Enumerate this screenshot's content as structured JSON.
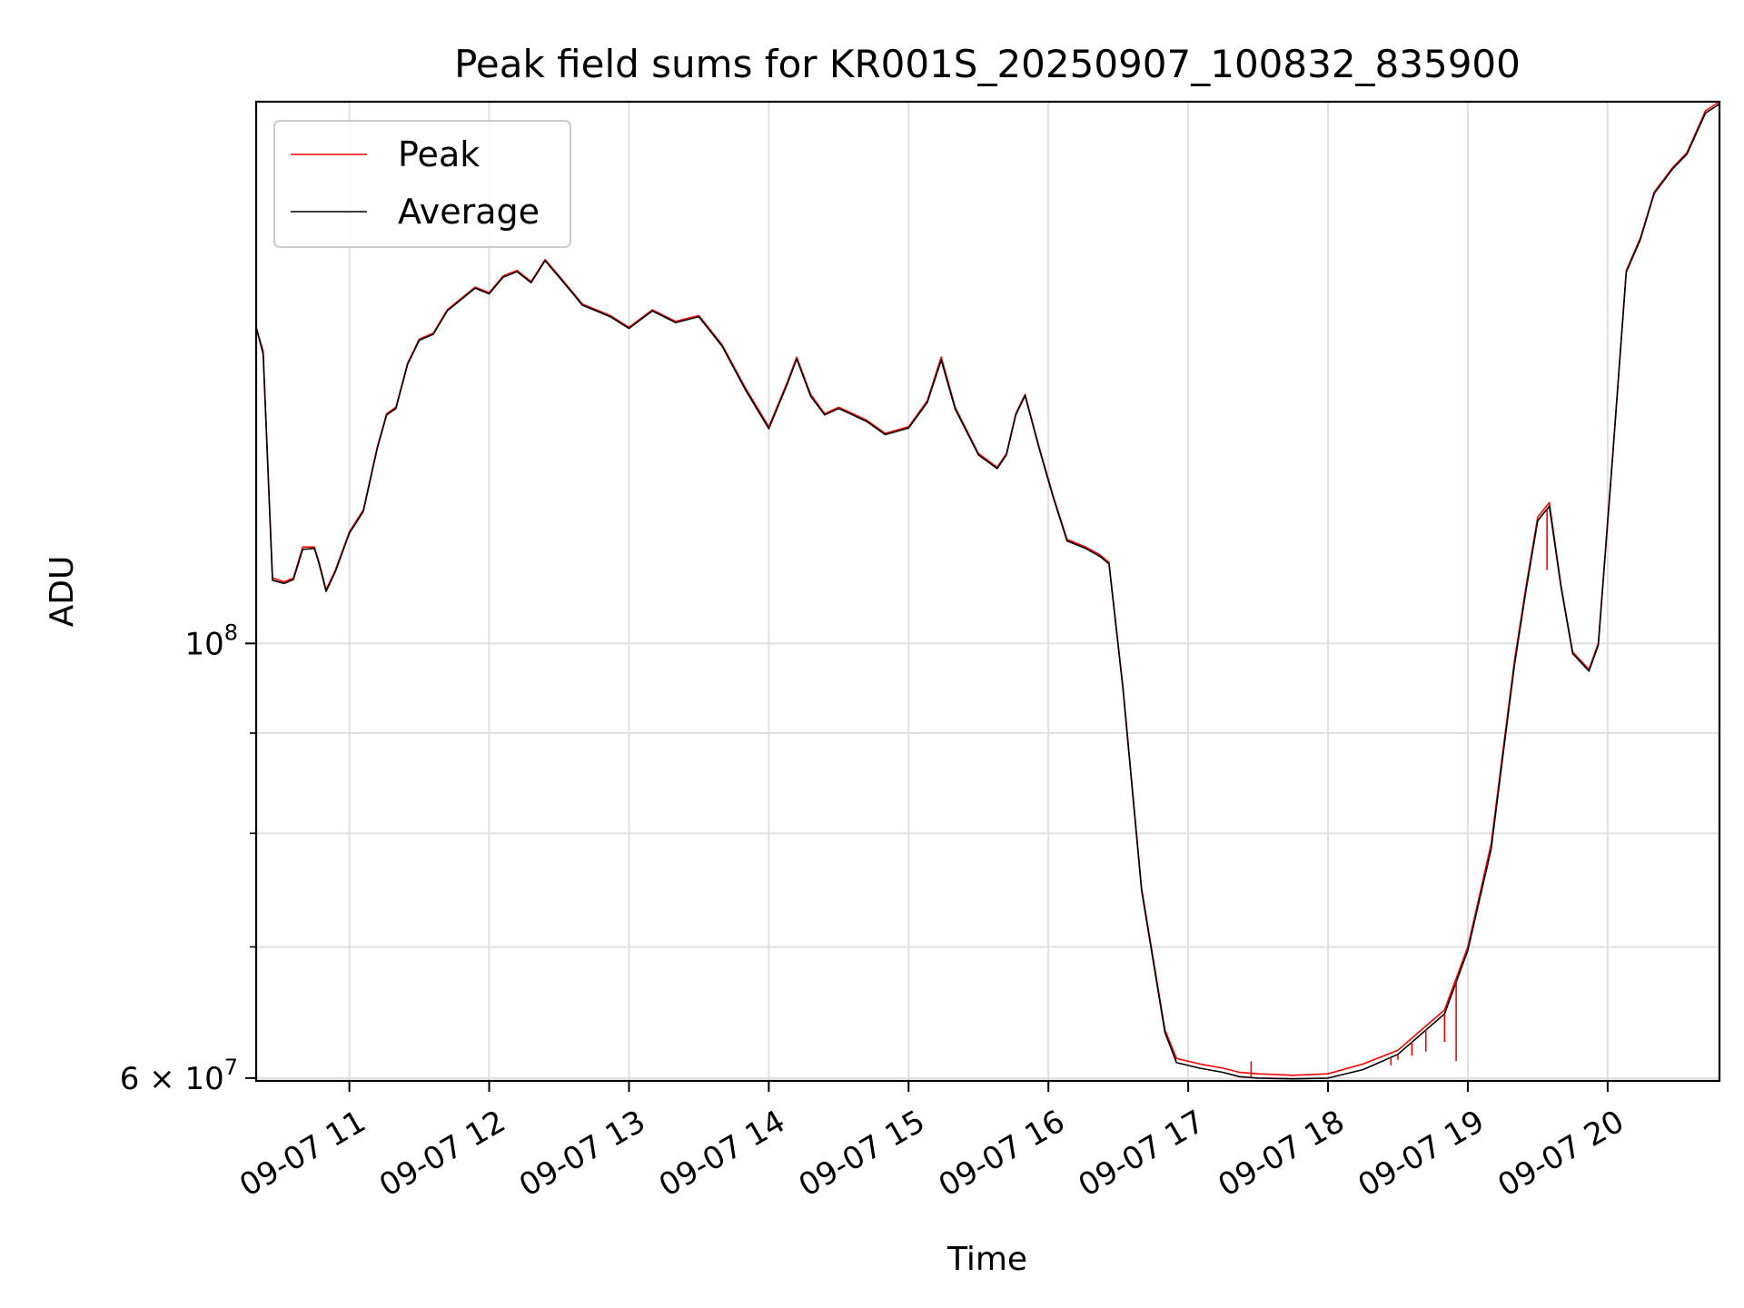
{
  "chart_data": {
    "type": "line",
    "title": "Peak field sums for KR001S_20250907_100832_835900",
    "xlabel": "Time",
    "ylabel": "ADU",
    "y_scale": "log",
    "xlim": [
      "2025-09-07T10:20",
      "2025-09-07T20:48"
    ],
    "ylim": [
      59800000,
      189000000
    ],
    "x_ticks": [
      "09-07 11",
      "09-07 12",
      "09-07 13",
      "09-07 14",
      "09-07 15",
      "09-07 16",
      "09-07 17",
      "09-07 18",
      "09-07 19",
      "09-07 20"
    ],
    "x_tick_times": [
      "2025-09-07T11:00",
      "2025-09-07T12:00",
      "2025-09-07T13:00",
      "2025-09-07T14:00",
      "2025-09-07T15:00",
      "2025-09-07T16:00",
      "2025-09-07T17:00",
      "2025-09-07T18:00",
      "2025-09-07T19:00",
      "2025-09-07T20:00"
    ],
    "y_ticks_major": [
      {
        "value": 100000000,
        "base": "10",
        "exp": "8",
        "coef": ""
      },
      {
        "value": 60000000,
        "base": "10",
        "exp": "7",
        "coef": "6"
      }
    ],
    "y_ticks_minor": [
      90000000,
      80000000,
      70000000
    ],
    "grid": true,
    "legend_position": "top-left",
    "series": [
      {
        "name": "Peak",
        "color": "#ff0000",
        "x": [
          "10:20",
          "10:23",
          "10:27",
          "10:32",
          "10:36",
          "10:40",
          "10:45",
          "10:47",
          "10:50",
          "10:54",
          "11:00",
          "11:06",
          "11:12",
          "11:16",
          "11:20",
          "11:25",
          "11:30",
          "11:36",
          "11:42",
          "11:48",
          "11:54",
          "12:00",
          "12:06",
          "12:12",
          "12:18",
          "12:24",
          "12:30",
          "12:36",
          "12:40",
          "12:46",
          "12:52",
          "13:00",
          "13:10",
          "13:20",
          "13:30",
          "13:40",
          "13:50",
          "14:00",
          "14:08",
          "14:12",
          "14:18",
          "14:24",
          "14:30",
          "14:36",
          "14:42",
          "14:50",
          "15:00",
          "15:08",
          "15:14",
          "15:20",
          "15:30",
          "15:38",
          "15:42",
          "15:46",
          "15:50",
          "15:56",
          "16:02",
          "16:08",
          "16:16",
          "16:22",
          "16:26",
          "16:32",
          "16:40",
          "16:50",
          "16:55",
          "17:05",
          "17:15",
          "17:22",
          "17:30",
          "17:45",
          "18:00",
          "18:15",
          "18:30",
          "18:50",
          "19:00",
          "19:10",
          "19:15",
          "19:20",
          "19:25",
          "19:30",
          "19:35",
          "19:40",
          "19:45",
          "19:52",
          "19:56",
          "20:02",
          "20:08",
          "20:14",
          "20:20",
          "20:28",
          "20:34",
          "20:42",
          "20:48"
        ],
        "y": [
          145000000,
          141000000,
          108000000,
          107500000,
          108000000,
          112000000,
          112000000,
          110000000,
          106500000,
          109000000,
          114000000,
          117000000,
          126000000,
          131000000,
          132000000,
          139000000,
          143000000,
          144000000,
          148000000,
          150000000,
          152000000,
          151000000,
          154000000,
          155000000,
          153000000,
          157000000,
          154000000,
          151000000,
          149000000,
          148000000,
          147000000,
          145000000,
          148000000,
          146000000,
          147000000,
          142000000,
          135000000,
          129000000,
          136000000,
          140000000,
          134000000,
          131000000,
          132000000,
          131000000,
          130000000,
          128000000,
          129000000,
          133000000,
          140000000,
          132000000,
          125000000,
          123000000,
          125000000,
          131000000,
          134000000,
          126000000,
          119000000,
          113000000,
          112000000,
          111000000,
          110000000,
          95000000,
          75000000,
          63500000,
          61400000,
          61000000,
          60700000,
          60400000,
          60300000,
          60200000,
          60300000,
          61000000,
          62000000,
          65000000,
          70000000,
          79000000,
          88000000,
          98000000,
          107000000,
          116000000,
          118000000,
          107000000,
          99000000,
          97000000,
          100000000,
          124000000,
          155000000,
          161000000,
          170000000,
          175000000,
          178000000,
          187000000,
          189000000
        ]
      },
      {
        "name": "Average",
        "color": "#000000",
        "x": [
          "10:20",
          "10:23",
          "10:27",
          "10:32",
          "10:36",
          "10:40",
          "10:45",
          "10:47",
          "10:50",
          "10:54",
          "11:00",
          "11:06",
          "11:12",
          "11:16",
          "11:20",
          "11:25",
          "11:30",
          "11:36",
          "11:42",
          "11:48",
          "11:54",
          "12:00",
          "12:06",
          "12:12",
          "12:18",
          "12:24",
          "12:30",
          "12:36",
          "12:40",
          "12:46",
          "12:52",
          "13:00",
          "13:10",
          "13:20",
          "13:30",
          "13:40",
          "13:50",
          "14:00",
          "14:08",
          "14:12",
          "14:18",
          "14:24",
          "14:30",
          "14:36",
          "14:42",
          "14:50",
          "15:00",
          "15:08",
          "15:14",
          "15:20",
          "15:30",
          "15:38",
          "15:42",
          "15:46",
          "15:50",
          "15:56",
          "16:02",
          "16:08",
          "16:16",
          "16:22",
          "16:26",
          "16:32",
          "16:40",
          "16:50",
          "16:55",
          "17:05",
          "17:15",
          "17:22",
          "17:30",
          "17:45",
          "18:00",
          "18:15",
          "18:30",
          "18:50",
          "19:00",
          "19:10",
          "19:15",
          "19:20",
          "19:25",
          "19:30",
          "19:35",
          "19:40",
          "19:45",
          "19:52",
          "19:56",
          "20:02",
          "20:08",
          "20:14",
          "20:20",
          "20:28",
          "20:34",
          "20:42",
          "20:48"
        ],
        "y": [
          145000000,
          140500000,
          107700000,
          107300000,
          107800000,
          111700000,
          111800000,
          109800000,
          106300000,
          108800000,
          113800000,
          116800000,
          125800000,
          130800000,
          131800000,
          138800000,
          142800000,
          143800000,
          147800000,
          149800000,
          151800000,
          150800000,
          153800000,
          154800000,
          152800000,
          156800000,
          153800000,
          150800000,
          148800000,
          147800000,
          146800000,
          144800000,
          147800000,
          145800000,
          146800000,
          141800000,
          134700000,
          128700000,
          135700000,
          139700000,
          133700000,
          130800000,
          131800000,
          130800000,
          129800000,
          127800000,
          128800000,
          132700000,
          139500000,
          131700000,
          124800000,
          122800000,
          124800000,
          130800000,
          133800000,
          125800000,
          118800000,
          112800000,
          111800000,
          110800000,
          109800000,
          94800000,
          74800000,
          63300000,
          61100000,
          60700000,
          60400000,
          60100000,
          60000000,
          59950000,
          60000000,
          60600000,
          61700000,
          64700000,
          69700000,
          78500000,
          87500000,
          97500000,
          106500000,
          115500000,
          117500000,
          106800000,
          98800000,
          96800000,
          99800000,
          123800000,
          154700000,
          160700000,
          169700000,
          174700000,
          177700000,
          186500000,
          188500000
        ]
      }
    ],
    "peak_spikes": [
      {
        "x": "17:27",
        "y": 61200000
      },
      {
        "x": "18:27",
        "y": 60900000
      },
      {
        "x": "18:30",
        "y": 61300000
      },
      {
        "x": "18:36",
        "y": 61600000
      },
      {
        "x": "18:42",
        "y": 61900000
      },
      {
        "x": "18:50",
        "y": 62600000
      },
      {
        "x": "18:55",
        "y": 61200000
      },
      {
        "x": "19:34",
        "y": 109000000
      }
    ]
  }
}
